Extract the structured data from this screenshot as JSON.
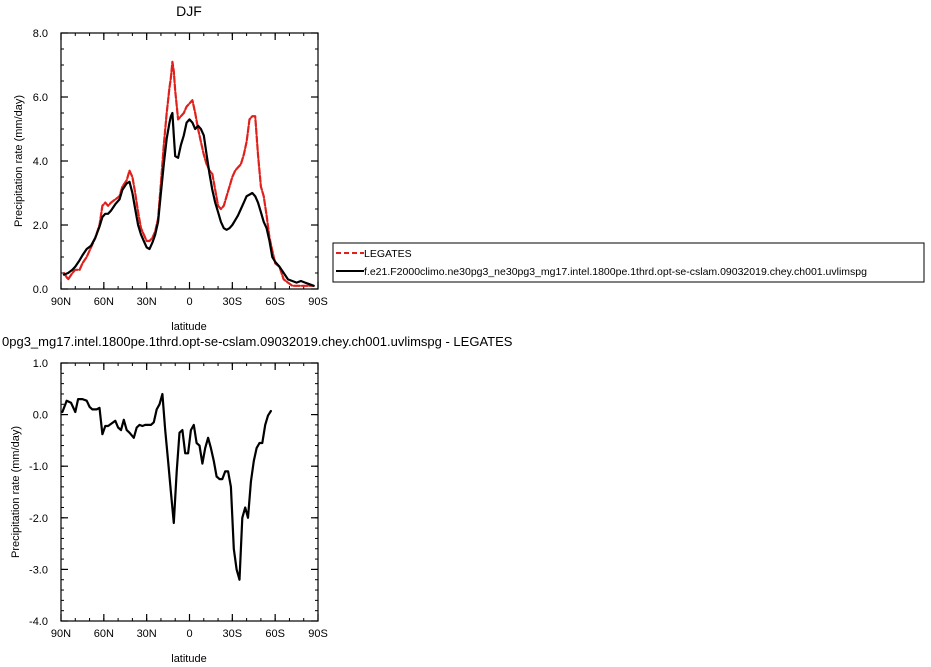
{
  "chart_data": [
    {
      "type": "line",
      "title": "DJF",
      "xlabel": "latitude",
      "ylabel": "Precipitation rate (mm/day)",
      "xlim": [
        90,
        -90
      ],
      "ylim": [
        0,
        8
      ],
      "x_ticks": [
        {
          "value": 90,
          "label": "90N"
        },
        {
          "value": 60,
          "label": "60N"
        },
        {
          "value": 30,
          "label": "30N"
        },
        {
          "value": 0,
          "label": "0"
        },
        {
          "value": -30,
          "label": "30S"
        },
        {
          "value": -60,
          "label": "60S"
        },
        {
          "value": -90,
          "label": "90S"
        }
      ],
      "y_ticks": [
        {
          "value": 0,
          "label": "0.0"
        },
        {
          "value": 2,
          "label": "2.0"
        },
        {
          "value": 4,
          "label": "4.0"
        },
        {
          "value": 6,
          "label": "6.0"
        },
        {
          "value": 8,
          "label": "8.0"
        }
      ],
      "legend": {
        "placement": "right"
      },
      "series": [
        {
          "name": "LEGATES",
          "color": "#e0201b",
          "dash": "dashed",
          "points": [
            [
              88,
              0.5
            ],
            [
              85,
              0.3
            ],
            [
              82,
              0.5
            ],
            [
              80,
              0.6
            ],
            [
              77,
              0.6
            ],
            [
              75,
              0.8
            ],
            [
              72,
              1.0
            ],
            [
              69,
              1.3
            ],
            [
              66,
              1.6
            ],
            [
              63,
              2.0
            ],
            [
              61,
              2.6
            ],
            [
              59,
              2.7
            ],
            [
              57,
              2.6
            ],
            [
              55,
              2.7
            ],
            [
              52,
              2.8
            ],
            [
              49,
              2.9
            ],
            [
              47,
              3.2
            ],
            [
              44,
              3.4
            ],
            [
              42,
              3.7
            ],
            [
              40,
              3.5
            ],
            [
              38,
              3.0
            ],
            [
              36,
              2.4
            ],
            [
              34,
              1.9
            ],
            [
              32,
              1.7
            ],
            [
              30,
              1.5
            ],
            [
              28,
              1.5
            ],
            [
              26,
              1.6
            ],
            [
              24,
              1.8
            ],
            [
              22,
              2.2
            ],
            [
              20,
              3.3
            ],
            [
              18,
              4.5
            ],
            [
              16,
              5.5
            ],
            [
              14,
              6.3
            ],
            [
              13,
              6.6
            ],
            [
              12,
              7.1
            ],
            [
              11,
              6.8
            ],
            [
              10,
              6.2
            ],
            [
              8,
              5.3
            ],
            [
              6,
              5.4
            ],
            [
              4,
              5.5
            ],
            [
              2,
              5.7
            ],
            [
              0,
              5.8
            ],
            [
              -2,
              5.9
            ],
            [
              -4,
              5.5
            ],
            [
              -6,
              5.0
            ],
            [
              -8,
              4.6
            ],
            [
              -10,
              4.2
            ],
            [
              -12,
              3.9
            ],
            [
              -14,
              3.7
            ],
            [
              -16,
              3.6
            ],
            [
              -18,
              3.1
            ],
            [
              -20,
              2.6
            ],
            [
              -22,
              2.5
            ],
            [
              -24,
              2.6
            ],
            [
              -26,
              2.9
            ],
            [
              -28,
              3.2
            ],
            [
              -30,
              3.5
            ],
            [
              -32,
              3.7
            ],
            [
              -34,
              3.8
            ],
            [
              -36,
              3.9
            ],
            [
              -38,
              4.2
            ],
            [
              -40,
              4.6
            ],
            [
              -42,
              5.3
            ],
            [
              -44,
              5.4
            ],
            [
              -46,
              5.4
            ],
            [
              -48,
              4.2
            ],
            [
              -50,
              3.2
            ],
            [
              -52,
              2.9
            ],
            [
              -54,
              2.3
            ],
            [
              -56,
              1.6
            ],
            [
              -58,
              1.2
            ],
            [
              -60,
              0.8
            ],
            [
              -63,
              0.7
            ],
            [
              -66,
              0.3
            ],
            [
              -69,
              0.2
            ],
            [
              -72,
              0.1
            ],
            [
              -75,
              0.1
            ],
            [
              -78,
              0.1
            ],
            [
              -81,
              0.1
            ],
            [
              -84,
              0.1
            ],
            [
              -87,
              0.1
            ]
          ]
        },
        {
          "name": "f.e21.F2000climo.ne30pg3_ne30pg3_mg17.intel.1800pe.1thrd.opt-se-cslam.09032019.chey.ch001.uvlimspg",
          "color": "#000000",
          "dash": "solid",
          "points": [
            [
              88,
              0.45
            ],
            [
              85,
              0.5
            ],
            [
              82,
              0.6
            ],
            [
              80,
              0.7
            ],
            [
              77,
              0.9
            ],
            [
              75,
              1.05
            ],
            [
              72,
              1.25
            ],
            [
              69,
              1.35
            ],
            [
              66,
              1.6
            ],
            [
              63,
              1.95
            ],
            [
              61,
              2.25
            ],
            [
              59,
              2.35
            ],
            [
              57,
              2.35
            ],
            [
              55,
              2.45
            ],
            [
              52,
              2.65
            ],
            [
              49,
              2.8
            ],
            [
              47,
              3.1
            ],
            [
              44,
              3.3
            ],
            [
              42,
              3.35
            ],
            [
              40,
              3.0
            ],
            [
              38,
              2.5
            ],
            [
              36,
              2.0
            ],
            [
              34,
              1.7
            ],
            [
              32,
              1.5
            ],
            [
              30,
              1.3
            ],
            [
              28,
              1.25
            ],
            [
              26,
              1.45
            ],
            [
              24,
              1.7
            ],
            [
              22,
              2.1
            ],
            [
              20,
              3.0
            ],
            [
              18,
              3.9
            ],
            [
              16,
              4.7
            ],
            [
              14,
              5.2
            ],
            [
              13,
              5.4
            ],
            [
              12,
              5.5
            ],
            [
              11,
              4.8
            ],
            [
              10,
              4.15
            ],
            [
              8,
              4.1
            ],
            [
              6,
              4.5
            ],
            [
              4,
              4.8
            ],
            [
              2,
              5.2
            ],
            [
              0,
              5.3
            ],
            [
              -2,
              5.2
            ],
            [
              -4,
              5.0
            ],
            [
              -6,
              5.1
            ],
            [
              -8,
              5.0
            ],
            [
              -10,
              4.8
            ],
            [
              -12,
              4.2
            ],
            [
              -14,
              3.6
            ],
            [
              -16,
              3.1
            ],
            [
              -18,
              2.7
            ],
            [
              -20,
              2.4
            ],
            [
              -22,
              2.1
            ],
            [
              -24,
              1.9
            ],
            [
              -26,
              1.85
            ],
            [
              -28,
              1.9
            ],
            [
              -30,
              2.0
            ],
            [
              -32,
              2.15
            ],
            [
              -34,
              2.3
            ],
            [
              -36,
              2.5
            ],
            [
              -38,
              2.7
            ],
            [
              -40,
              2.9
            ],
            [
              -42,
              2.95
            ],
            [
              -44,
              3.0
            ],
            [
              -46,
              2.9
            ],
            [
              -48,
              2.7
            ],
            [
              -50,
              2.4
            ],
            [
              -52,
              2.1
            ],
            [
              -54,
              1.9
            ],
            [
              -56,
              1.5
            ],
            [
              -58,
              1.0
            ],
            [
              -60,
              0.85
            ],
            [
              -63,
              0.7
            ],
            [
              -66,
              0.5
            ],
            [
              -69,
              0.3
            ],
            [
              -72,
              0.25
            ],
            [
              -75,
              0.2
            ],
            [
              -78,
              0.25
            ],
            [
              -81,
              0.2
            ],
            [
              -84,
              0.15
            ],
            [
              -87,
              0.1
            ]
          ]
        }
      ]
    },
    {
      "type": "line",
      "title": "0pg3_mg17.intel.1800pe.1thrd.opt-se-cslam.09032019.chey.ch001.uvlimspg - LEGATES",
      "xlabel": "latitude",
      "ylabel": "Precipitation rate (mm/day)",
      "xlim": [
        90,
        -90
      ],
      "ylim": [
        -4,
        1
      ],
      "x_ticks": [
        {
          "value": 90,
          "label": "90N"
        },
        {
          "value": 60,
          "label": "60N"
        },
        {
          "value": 30,
          "label": "30N"
        },
        {
          "value": 0,
          "label": "0"
        },
        {
          "value": -30,
          "label": "30S"
        },
        {
          "value": -60,
          "label": "60S"
        },
        {
          "value": -90,
          "label": "90S"
        }
      ],
      "y_ticks": [
        {
          "value": -4,
          "label": "-4.0"
        },
        {
          "value": -3,
          "label": "-3.0"
        },
        {
          "value": -2,
          "label": "-2.0"
        },
        {
          "value": -1,
          "label": "-1.0"
        },
        {
          "value": 0,
          "label": "0.0"
        },
        {
          "value": 1,
          "label": "1.0"
        }
      ],
      "series": [
        {
          "color": "#000000",
          "dash": "solid",
          "points": [
            [
              89,
              0.05
            ],
            [
              86,
              0.27
            ],
            [
              83,
              0.23
            ],
            [
              80,
              0.05
            ],
            [
              78,
              0.3
            ],
            [
              75,
              0.3
            ],
            [
              72,
              0.27
            ],
            [
              70,
              0.15
            ],
            [
              68,
              0.1
            ],
            [
              65,
              0.1
            ],
            [
              63,
              0.13
            ],
            [
              61,
              -0.38
            ],
            [
              59,
              -0.22
            ],
            [
              57,
              -0.22
            ],
            [
              55,
              -0.18
            ],
            [
              52,
              -0.12
            ],
            [
              50,
              -0.25
            ],
            [
              48,
              -0.3
            ],
            [
              46,
              -0.1
            ],
            [
              44,
              -0.3
            ],
            [
              42,
              -0.35
            ],
            [
              39,
              -0.45
            ],
            [
              37,
              -0.25
            ],
            [
              35,
              -0.2
            ],
            [
              33,
              -0.22
            ],
            [
              31,
              -0.2
            ],
            [
              29,
              -0.2
            ],
            [
              27,
              -0.2
            ],
            [
              25,
              -0.15
            ],
            [
              23,
              0.1
            ],
            [
              21,
              0.2
            ],
            [
              19,
              0.4
            ],
            [
              17,
              -0.3
            ],
            [
              15,
              -0.9
            ],
            [
              13,
              -1.5
            ],
            [
              11,
              -2.1
            ],
            [
              9,
              -1.1
            ],
            [
              7,
              -0.35
            ],
            [
              5,
              -0.3
            ],
            [
              3,
              -0.75
            ],
            [
              1,
              -0.75
            ],
            [
              -1,
              -0.3
            ],
            [
              -3,
              -0.2
            ],
            [
              -5,
              -0.55
            ],
            [
              -7,
              -0.6
            ],
            [
              -9,
              -0.95
            ],
            [
              -11,
              -0.65
            ],
            [
              -13,
              -0.45
            ],
            [
              -15,
              -0.65
            ],
            [
              -17,
              -0.9
            ],
            [
              -19,
              -1.2
            ],
            [
              -21,
              -1.25
            ],
            [
              -23,
              -1.25
            ],
            [
              -25,
              -1.1
            ],
            [
              -27,
              -1.1
            ],
            [
              -29,
              -1.4
            ],
            [
              -31,
              -2.6
            ],
            [
              -33,
              -3.0
            ],
            [
              -35,
              -3.2
            ],
            [
              -37,
              -2.0
            ],
            [
              -39,
              -1.8
            ],
            [
              -41,
              -2.0
            ],
            [
              -43,
              -1.3
            ],
            [
              -45,
              -0.9
            ],
            [
              -47,
              -0.65
            ],
            [
              -49,
              -0.55
            ],
            [
              -51,
              -0.55
            ],
            [
              -53,
              -0.2
            ],
            [
              -55,
              -0.02
            ],
            [
              -57,
              0.07
            ]
          ]
        }
      ]
    }
  ]
}
